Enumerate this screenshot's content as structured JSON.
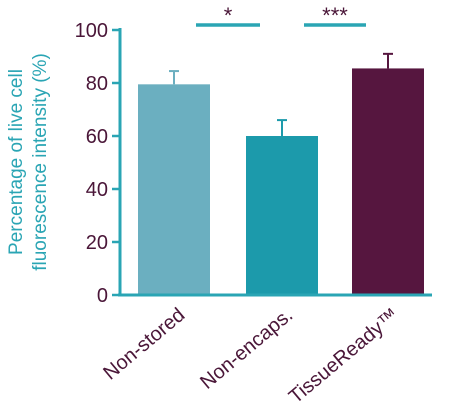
{
  "chart_data": {
    "type": "bar",
    "categories": [
      "Non-stored",
      "Non-encaps.",
      "TissueReady™"
    ],
    "values": [
      79.5,
      60.0,
      85.5
    ],
    "errors": [
      5.0,
      6.0,
      5.5
    ],
    "colors": [
      "#6bafc0",
      "#1c9aab",
      "#56163f"
    ],
    "axis_color": "#2aa5b4",
    "ylabel_lines": [
      "Percentage of live cell",
      "fluorescence intensity (%)"
    ],
    "ylim": [
      0,
      100
    ],
    "yticks": [
      "0",
      "20",
      "40",
      "60",
      "80",
      "100"
    ],
    "significance": [
      {
        "from": 0,
        "to": 1,
        "label": "*"
      },
      {
        "from": 1,
        "to": 2,
        "label": "***"
      }
    ]
  }
}
